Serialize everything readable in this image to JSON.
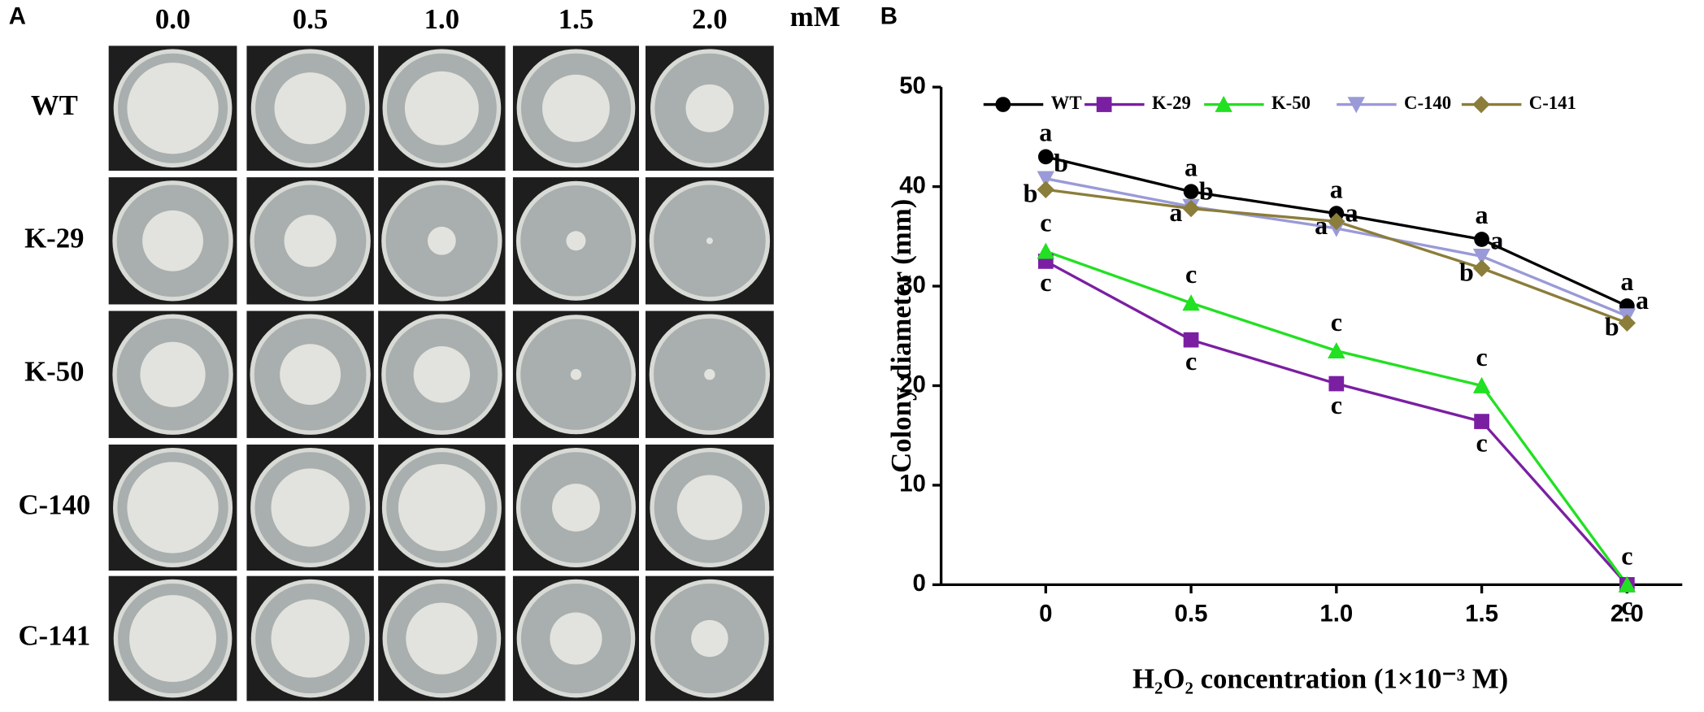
{
  "panel_a": {
    "label": "A",
    "columns": [
      "0.0",
      "0.5",
      "1.0",
      "1.5",
      "2.0"
    ],
    "unit": "mM",
    "rows": [
      "WT",
      "K-29",
      "K-50",
      "C-140",
      "C-141"
    ]
  },
  "chart_data": {
    "type": "line",
    "panel_label": "B",
    "x_label": "H₂O₂  concentration (1×10⁻³ M)",
    "y_label": "Colony diameter (mm)",
    "x": [
      0,
      0.5,
      1.0,
      1.5,
      2.0
    ],
    "xlim": [
      -0.36,
      2.19
    ],
    "xticks": [
      0,
      {
        "value": 0.5,
        "label": "0.5"
      },
      {
        "value": 1.0,
        "label": "1.0"
      },
      {
        "value": 1.5,
        "label": "1.5"
      },
      {
        "value": 2.0,
        "label": "2.0"
      }
    ],
    "ylim": [
      0,
      50
    ],
    "yticks": [
      0,
      10,
      20,
      30,
      40,
      50
    ],
    "legend": "top",
    "series": [
      {
        "name": "WT",
        "color": "#000000",
        "marker": "circle",
        "values": [
          43,
          39.5,
          37.3,
          34.7,
          28
        ],
        "letters": [
          "a",
          "a",
          "a",
          "a",
          "a"
        ]
      },
      {
        "name": "K-29",
        "color": "#7b1fa2",
        "marker": "square",
        "values": [
          32.5,
          24.6,
          20.2,
          16.4,
          0
        ],
        "letters": [
          "c",
          "c",
          "c",
          "c",
          "c"
        ]
      },
      {
        "name": "K-50",
        "color": "#22e022",
        "marker": "triangle",
        "values": [
          33.5,
          28.3,
          23.5,
          20,
          0
        ],
        "letters": [
          "c",
          "c",
          "c",
          "c",
          "c"
        ]
      },
      {
        "name": "C-140",
        "color": "#9a9ad8",
        "marker": "triangle-down",
        "values": [
          40.8,
          38,
          35.8,
          33,
          27
        ],
        "letters": [
          "b",
          "b",
          "a",
          "a",
          "a"
        ]
      },
      {
        "name": "C-141",
        "color": "#8b7d3a",
        "marker": "diamond",
        "values": [
          39.7,
          37.8,
          36.5,
          31.8,
          26.3
        ],
        "letters": [
          "b",
          "a",
          "a",
          "b",
          "b"
        ]
      }
    ]
  }
}
